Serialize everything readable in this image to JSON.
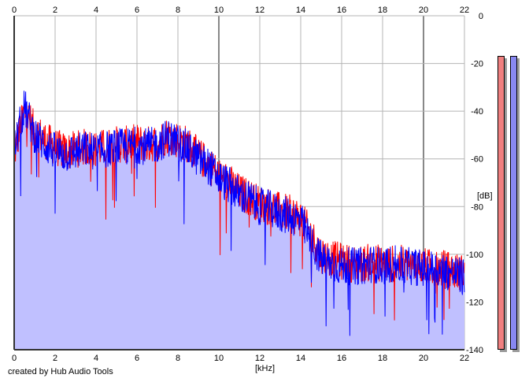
{
  "chart_data": {
    "type": "area",
    "xlabel": "[kHz]",
    "ylabel": "[dB]",
    "xlim": [
      0,
      22
    ],
    "ylim": [
      -140,
      0
    ],
    "x_ticks": [
      0,
      2,
      4,
      6,
      8,
      10,
      12,
      14,
      16,
      18,
      20,
      22
    ],
    "y_ticks": [
      0,
      -20,
      -40,
      -60,
      -80,
      -100,
      -120,
      -140
    ],
    "grid": true,
    "series": [
      {
        "color": "#ff0000",
        "x": [
          0.0,
          0.5,
          1.0,
          1.5,
          2.0,
          2.5,
          3.0,
          3.5,
          4.0,
          4.5,
          5.0,
          5.5,
          6.0,
          6.5,
          7.0,
          7.5,
          8.0,
          8.5,
          9.0,
          9.5,
          10.0,
          10.5,
          11.0,
          11.5,
          12.0,
          12.5,
          13.0,
          13.5,
          14.0,
          14.5,
          15.0,
          15.5,
          16.0,
          16.5,
          17.0,
          17.5,
          18.0,
          18.5,
          19.0,
          19.5,
          20.0,
          20.5,
          21.0,
          21.5,
          22.0
        ],
        "values": [
          -58,
          -40,
          -48,
          -52,
          -55,
          -57,
          -56,
          -55,
          -56,
          -55,
          -54,
          -54,
          -53,
          -54,
          -53,
          -50,
          -52,
          -54,
          -59,
          -62,
          -67,
          -70,
          -74,
          -76,
          -79,
          -80,
          -82,
          -83,
          -85,
          -92,
          -100,
          -102,
          -103,
          -104,
          -104,
          -103,
          -104,
          -104,
          -104,
          -105,
          -105,
          -106,
          -106,
          -107,
          -108
        ]
      },
      {
        "color": "#0000ff",
        "x": [
          0.0,
          0.5,
          1.0,
          1.5,
          2.0,
          2.5,
          3.0,
          3.5,
          4.0,
          4.5,
          5.0,
          5.5,
          6.0,
          6.5,
          7.0,
          7.5,
          8.0,
          8.5,
          9.0,
          9.5,
          10.0,
          10.5,
          11.0,
          11.5,
          12.0,
          12.5,
          13.0,
          13.5,
          14.0,
          14.5,
          15.0,
          15.5,
          16.0,
          16.5,
          17.0,
          17.5,
          18.0,
          18.5,
          19.0,
          19.5,
          20.0,
          20.5,
          21.0,
          21.5,
          22.0
        ],
        "values": [
          -56,
          -38,
          -50,
          -54,
          -57,
          -58,
          -57,
          -56,
          -57,
          -56,
          -55,
          -55,
          -54,
          -55,
          -54,
          -51,
          -53,
          -56,
          -60,
          -63,
          -68,
          -71,
          -75,
          -77,
          -80,
          -81,
          -83,
          -84,
          -86,
          -95,
          -102,
          -104,
          -105,
          -105,
          -105,
          -104,
          -105,
          -104,
          -105,
          -105,
          -106,
          -106,
          -107,
          -108,
          -110
        ]
      }
    ],
    "fill_color": "#c0c0ff",
    "level_meters": [
      {
        "color": "#f08080",
        "value_db": -17
      },
      {
        "color": "#8888f0",
        "value_db": -17
      }
    ]
  },
  "credit": "created by Hub Audio Tools"
}
